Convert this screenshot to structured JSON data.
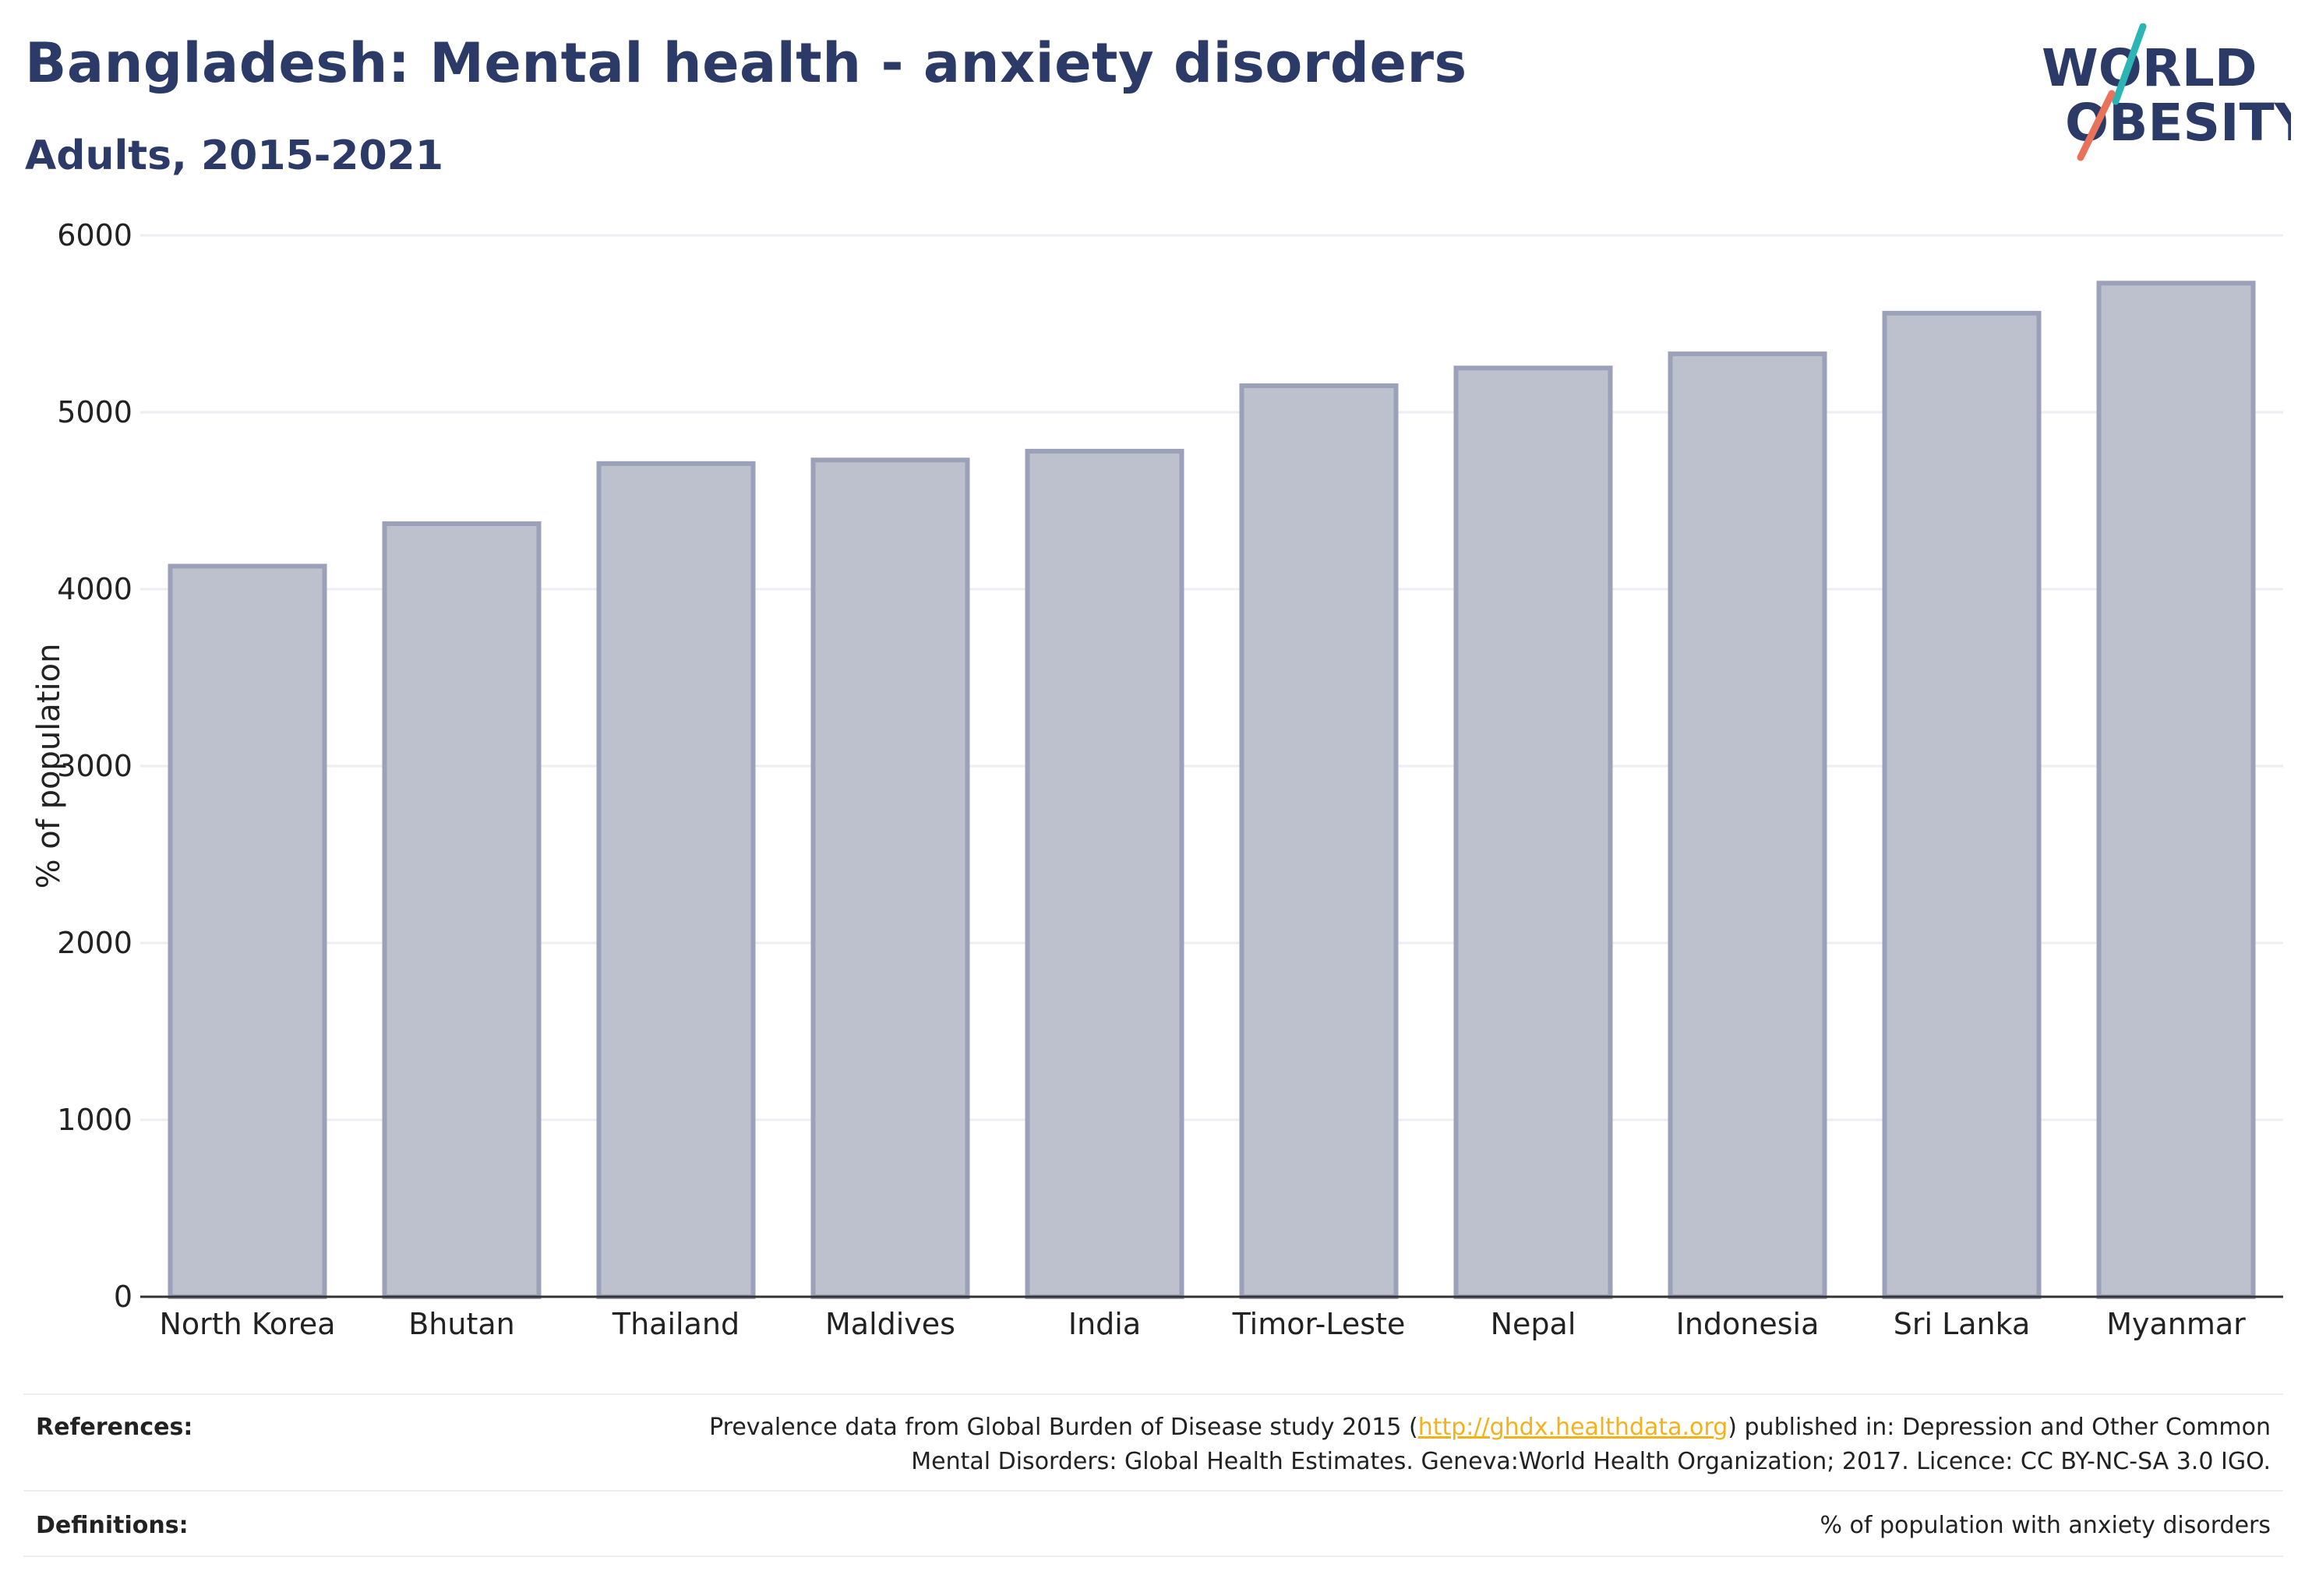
{
  "header": {
    "title": "Bangladesh: Mental health - anxiety disorders",
    "subtitle": "Adults, 2015-2021",
    "logo_line1": "WORLD",
    "logo_line2": "OBESITY"
  },
  "colors": {
    "title": "#2b3a67",
    "bar_fill": "#bdc1cd",
    "bar_stroke": "#9ba1b8",
    "link": "#f2b21c",
    "logo_teal": "#2bb5b5",
    "logo_coral": "#e8735a"
  },
  "chart_data": {
    "type": "bar",
    "categories": [
      "North Korea",
      "Bhutan",
      "Thailand",
      "Maldives",
      "India",
      "Timor-Leste",
      "Nepal",
      "Indonesia",
      "Sri Lanka",
      "Myanmar"
    ],
    "values": [
      4130,
      4370,
      4710,
      4730,
      4780,
      5150,
      5250,
      5330,
      5560,
      5730
    ],
    "title": "Bangladesh: Mental health - anxiety disorders",
    "subtitle": "Adults, 2015-2021",
    "xlabel": "",
    "ylabel": "% of population",
    "ylim": [
      0,
      6000
    ],
    "yticks": [
      0,
      1000,
      2000,
      3000,
      4000,
      5000,
      6000
    ],
    "grid": true,
    "legend": "none"
  },
  "footer": {
    "references_label": "References:",
    "references_pre": "Prevalence data from Global Burden of Disease study 2015 (",
    "references_link": "http://ghdx.healthdata.org",
    "references_post": ") published in: Depression and Other Common",
    "references_line2": "Mental Disorders: Global Health Estimates. Geneva:World Health Organization; 2017. Licence: CC BY-NC-SA 3.0 IGO.",
    "definitions_label": "Definitions:",
    "definitions_text": "% of population with anxiety disorders"
  }
}
